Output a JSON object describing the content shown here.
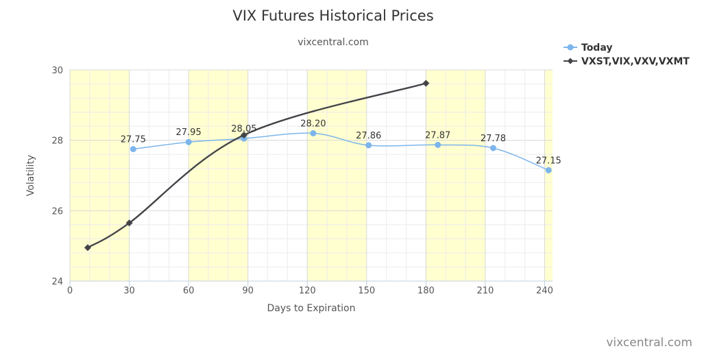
{
  "chart_data": {
    "type": "line",
    "title": "VIX Futures Historical Prices",
    "subtitle": "vixcentral.com",
    "xlabel": "Days to Expiration",
    "ylabel": "Volatility",
    "xlim": [
      0,
      244
    ],
    "ylim": [
      24,
      30
    ],
    "xticks": [
      0,
      30,
      60,
      90,
      120,
      150,
      180,
      210,
      240
    ],
    "yticks": [
      24,
      26,
      28,
      30
    ],
    "grid": true,
    "legend_position": "top-right",
    "bands": [
      [
        0,
        30
      ],
      [
        60,
        90
      ],
      [
        120,
        150
      ],
      [
        180,
        210
      ],
      [
        240,
        244
      ]
    ],
    "band_color": "#ffffd0",
    "series": [
      {
        "name": "Today",
        "color": "#7cb5ec",
        "marker": "circle",
        "points": [
          {
            "x": 32,
            "y": 27.75,
            "label": "27.75"
          },
          {
            "x": 60,
            "y": 27.95,
            "label": "27.95"
          },
          {
            "x": 88,
            "y": 28.05,
            "label": "28.05"
          },
          {
            "x": 123,
            "y": 28.2,
            "label": "28.20"
          },
          {
            "x": 151,
            "y": 27.86,
            "label": "27.86"
          },
          {
            "x": 186,
            "y": 27.87,
            "label": "27.87"
          },
          {
            "x": 214,
            "y": 27.78,
            "label": "27.78"
          },
          {
            "x": 242,
            "y": 27.15,
            "label": "27.15"
          }
        ]
      },
      {
        "name": "VXST,VIX,VXV,VXMT",
        "color": "#434348",
        "marker": "diamond",
        "points": [
          {
            "x": 9,
            "y": 24.95
          },
          {
            "x": 30,
            "y": 25.65
          },
          {
            "x": 88,
            "y": 28.15
          },
          {
            "x": 180,
            "y": 29.62
          }
        ]
      }
    ]
  },
  "credit": "vixcentral.com"
}
